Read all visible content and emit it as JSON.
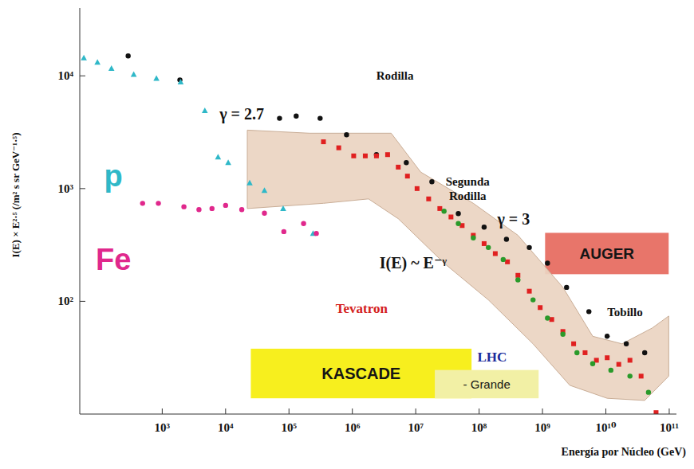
{
  "chart_data": {
    "type": "scatter",
    "log": true,
    "grid": false,
    "xlabel": "Energía por Núcleo (GeV)",
    "ylabel": "I(E) × E²·⁵  (/m² s sr GeV⁻¹·⁵)",
    "xlim": [
      50,
      130000000000
    ],
    "ylim": [
      10,
      40000
    ],
    "xticks": [
      {
        "value": 1000,
        "label": "10³"
      },
      {
        "value": 10000,
        "label": "10⁴"
      },
      {
        "value": 100000,
        "label": "10⁵"
      },
      {
        "value": 1000000,
        "label": "10⁶"
      },
      {
        "value": 10000000,
        "label": "10⁷"
      },
      {
        "value": 100000000,
        "label": "10⁸"
      },
      {
        "value": 1000000000,
        "label": "10⁹"
      },
      {
        "value": 10000000000,
        "label": "10¹⁰"
      },
      {
        "value": 100000000000,
        "label": "10¹¹"
      }
    ],
    "yticks": [
      {
        "value": 100,
        "label": "10²"
      },
      {
        "value": 1000,
        "label": "10³"
      },
      {
        "value": 10000,
        "label": "10⁴"
      }
    ],
    "series": [
      {
        "color": "#111111",
        "marker": "circle",
        "x": [
          290,
          1900,
          71000,
          130000,
          310000,
          810000,
          2400000,
          7100000,
          18000000,
          47000000,
          120000000,
          270000000,
          620000000,
          1200000000,
          2400000000,
          5400000000,
          10500000000,
          21000000000,
          41000000000
        ],
        "values": [
          15000,
          9200,
          4200,
          4400,
          4200,
          3000,
          2000,
          1700,
          1150,
          600,
          455,
          355,
          300,
          218,
          133,
          81,
          49,
          42,
          35
        ]
      },
      {
        "color": "#e02020",
        "marker": "square",
        "x": [
          350000,
          610000,
          1050000,
          1600000,
          2400000,
          3600000,
          5300000,
          7400000,
          10500000,
          16000000,
          24000000,
          36000000,
          54000000,
          81000000,
          120000000,
          180000000,
          280000000,
          410000000,
          620000000,
          920000000,
          1400000000,
          2100000000,
          3100000000,
          4700000000,
          7100000000,
          10500000000,
          16000000000,
          24000000000,
          36000000000,
          62000000000
        ],
        "values": [
          2600,
          2300,
          1950,
          1950,
          1950,
          2000,
          1550,
          1290,
          1000,
          810,
          665,
          560,
          470,
          385,
          325,
          265,
          224,
          170,
          123,
          88,
          69,
          54,
          42,
          35,
          30,
          31.6,
          27.6,
          30,
          21.7,
          10.3
        ]
      },
      {
        "color": "#2a9a2a",
        "marker": "circle",
        "x": [
          28000000,
          47000000,
          81000000,
          140000000,
          240000000,
          410000000,
          710000000,
          1200000000,
          2100000000,
          3500000000,
          6200000000,
          12000000000,
          24000000000,
          47000000000
        ],
        "values": [
          630,
          490,
          365,
          300,
          235,
          155,
          103,
          71,
          51,
          35,
          28,
          24.5,
          21.7,
          15.6
        ]
      },
      {
        "color": "#2fb8c8",
        "marker": "triangle",
        "x": [
          58,
          95,
          158,
          355,
          810,
          1950,
          4700,
          7600,
          11000,
          24000,
          41000,
          81000,
          240000
        ],
        "values": [
          14400,
          13200,
          11600,
          10300,
          9500,
          8800,
          4900,
          1900,
          1700,
          1120,
          960,
          665,
          400
        ]
      },
      {
        "color": "#e0288c",
        "marker": "circle",
        "x": [
          490,
          870,
          2200,
          3800,
          6100,
          10000,
          18000,
          41000,
          83000,
          170000,
          270000
        ],
        "values": [
          740,
          740,
          690,
          650,
          665,
          710,
          650,
          605,
          415,
          490,
          400
        ]
      }
    ],
    "band": {
      "color": "#ead4c1",
      "x_upper": [
        22000,
        210000,
        4100000,
        12000000,
        81000000,
        410000000,
        2100000000,
        6200000000,
        18000000000,
        54000000000,
        98000000000
      ],
      "upper": [
        3300,
        3100,
        3100,
        1400,
        740,
        385,
        133,
        49,
        42,
        58,
        74
      ],
      "x_lower": [
        22000,
        350000,
        1800000,
        5300000,
        28000000,
        140000000,
        710000000,
        2700000000,
        10500000000,
        41000000000,
        98000000000
      ],
      "lower": [
        665,
        740,
        810,
        540,
        218,
        103,
        42,
        18,
        13.8,
        13.2,
        21.7
      ]
    },
    "regions": [
      {
        "label": "KASCADE",
        "color": "#f7ef1e",
        "x": [
          25000,
          76000000
        ],
        "y": [
          13.8,
          38
        ]
      },
      {
        "label": "- Grande",
        "color": "#f2f0a5",
        "x": [
          20000000,
          870000000
        ],
        "y": [
          13.8,
          24.6
        ]
      },
      {
        "label": "AUGER",
        "color": "#e8756a",
        "x": [
          1100000000,
          98000000000
        ],
        "y": [
          174,
          405
        ]
      }
    ],
    "annotations": [
      {
        "text": "γ = 2.7",
        "x": 18000,
        "y": 4600,
        "color": "#111111"
      },
      {
        "text": "Rodilla",
        "x": 4700000,
        "y": 10000,
        "color": "#111111"
      },
      {
        "text": "Segunda Rodilla",
        "x": 66000000,
        "y": 1000,
        "color": "#111111"
      },
      {
        "text": "γ = 3",
        "x": 350000000,
        "y": 540,
        "color": "#111111"
      },
      {
        "text": "I(E) ~ E⁻ᵞ",
        "x": 9100000,
        "y": 220,
        "color": "#111111"
      },
      {
        "text": "Tobillo",
        "x": 20000000000,
        "y": 80,
        "color": "#111111"
      },
      {
        "text": "p",
        "x": 170,
        "y": 1300,
        "color": "#2fb8c8"
      },
      {
        "text": "Fe",
        "x": 170,
        "y": 235,
        "color": "#e0288c"
      },
      {
        "text": "Tevatron",
        "x": 1400000,
        "y": 87,
        "color": "#d42020"
      },
      {
        "text": "LHC",
        "x": 160000000,
        "y": 32,
        "color": "#1a2a9a"
      }
    ]
  }
}
